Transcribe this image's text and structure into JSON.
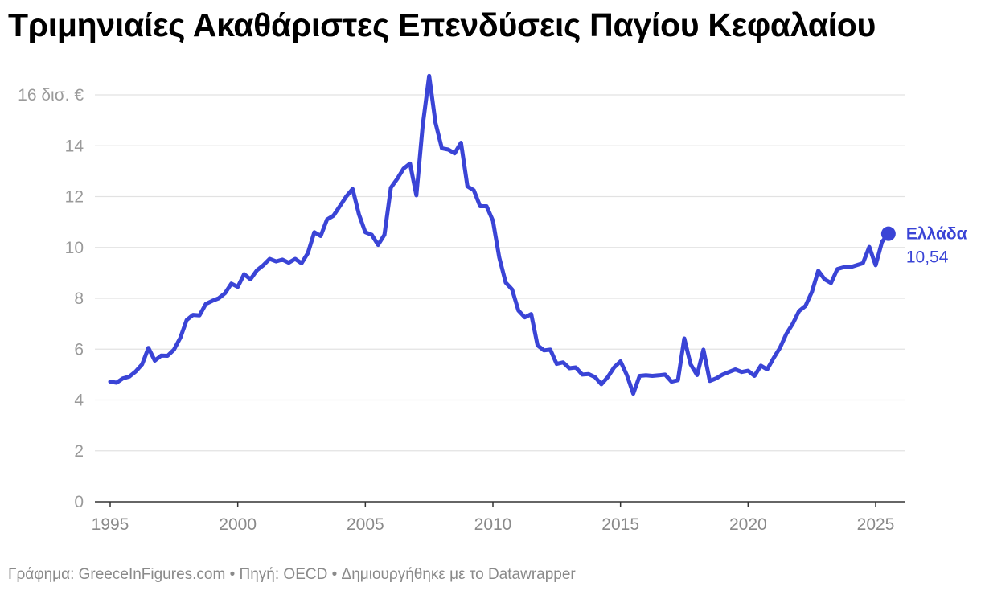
{
  "title": "Τριμηνιαίες Ακαθάριστες Επενδύσεις Παγίου Κεφαλαίου",
  "footer": "Γράφημα: GreeceInFigures.com • Πηγή: OECD • Δημιουργήθηκε με το Datawrapper",
  "colors": {
    "line": "#3a44d6",
    "grid": "#e2e2e2",
    "axis": "#333333"
  },
  "chart_data": {
    "type": "line",
    "title": "Τριμηνιαίες Ακαθάριστες Επενδύσεις Παγίου Κεφαλαίου",
    "xlabel": "",
    "ylabel": "",
    "ylim": [
      0,
      16
    ],
    "xlim": [
      1995,
      2026
    ],
    "y_ticks": [
      {
        "value": 0,
        "label": "0"
      },
      {
        "value": 2,
        "label": "2"
      },
      {
        "value": 4,
        "label": "4"
      },
      {
        "value": 6,
        "label": "6"
      },
      {
        "value": 8,
        "label": "8"
      },
      {
        "value": 10,
        "label": "10"
      },
      {
        "value": 12,
        "label": "12"
      },
      {
        "value": 14,
        "label": "14"
      },
      {
        "value": 16,
        "label": "16 δισ. €"
      }
    ],
    "x_ticks": [
      {
        "value": 1995,
        "label": "1995"
      },
      {
        "value": 2000,
        "label": "2000"
      },
      {
        "value": 2005,
        "label": "2005"
      },
      {
        "value": 2010,
        "label": "2010"
      },
      {
        "value": 2015,
        "label": "2015"
      },
      {
        "value": 2020,
        "label": "2020"
      },
      {
        "value": 2025,
        "label": "2025"
      }
    ],
    "grid": true,
    "series": [
      {
        "name": "Ελλάδα",
        "end_label": "10,54",
        "color": "#3a44d6",
        "points": [
          [
            1995.0,
            4.72
          ],
          [
            1995.25,
            4.68
          ],
          [
            1995.5,
            4.85
          ],
          [
            1995.75,
            4.92
          ],
          [
            1996.0,
            5.12
          ],
          [
            1996.25,
            5.4
          ],
          [
            1996.5,
            6.05
          ],
          [
            1996.75,
            5.55
          ],
          [
            1997.0,
            5.75
          ],
          [
            1997.25,
            5.74
          ],
          [
            1997.5,
            5.98
          ],
          [
            1997.75,
            6.45
          ],
          [
            1998.0,
            7.15
          ],
          [
            1998.25,
            7.35
          ],
          [
            1998.5,
            7.33
          ],
          [
            1998.75,
            7.78
          ],
          [
            1999.0,
            7.9
          ],
          [
            1999.25,
            8.0
          ],
          [
            1999.5,
            8.2
          ],
          [
            1999.75,
            8.58
          ],
          [
            2000.0,
            8.45
          ],
          [
            2000.25,
            8.95
          ],
          [
            2000.5,
            8.75
          ],
          [
            2000.75,
            9.1
          ],
          [
            2001.0,
            9.3
          ],
          [
            2001.25,
            9.55
          ],
          [
            2001.5,
            9.45
          ],
          [
            2001.75,
            9.52
          ],
          [
            2002.0,
            9.4
          ],
          [
            2002.25,
            9.55
          ],
          [
            2002.5,
            9.38
          ],
          [
            2002.75,
            9.78
          ],
          [
            2003.0,
            10.6
          ],
          [
            2003.25,
            10.45
          ],
          [
            2003.5,
            11.1
          ],
          [
            2003.75,
            11.25
          ],
          [
            2004.0,
            11.62
          ],
          [
            2004.25,
            12.0
          ],
          [
            2004.5,
            12.3
          ],
          [
            2004.75,
            11.3
          ],
          [
            2005.0,
            10.6
          ],
          [
            2005.25,
            10.5
          ],
          [
            2005.5,
            10.1
          ],
          [
            2005.75,
            10.5
          ],
          [
            2006.0,
            12.35
          ],
          [
            2006.25,
            12.7
          ],
          [
            2006.5,
            13.1
          ],
          [
            2006.75,
            13.3
          ],
          [
            2007.0,
            12.05
          ],
          [
            2007.25,
            14.8
          ],
          [
            2007.5,
            16.75
          ],
          [
            2007.75,
            14.9
          ],
          [
            2008.0,
            13.9
          ],
          [
            2008.25,
            13.85
          ],
          [
            2008.5,
            13.7
          ],
          [
            2008.75,
            14.12
          ],
          [
            2009.0,
            12.4
          ],
          [
            2009.25,
            12.25
          ],
          [
            2009.5,
            11.62
          ],
          [
            2009.75,
            11.62
          ],
          [
            2010.0,
            11.05
          ],
          [
            2010.25,
            9.6
          ],
          [
            2010.5,
            8.62
          ],
          [
            2010.75,
            8.35
          ],
          [
            2011.0,
            7.52
          ],
          [
            2011.25,
            7.25
          ],
          [
            2011.5,
            7.38
          ],
          [
            2011.75,
            6.15
          ],
          [
            2012.0,
            5.95
          ],
          [
            2012.25,
            5.98
          ],
          [
            2012.5,
            5.42
          ],
          [
            2012.75,
            5.48
          ],
          [
            2013.0,
            5.25
          ],
          [
            2013.25,
            5.28
          ],
          [
            2013.5,
            5.0
          ],
          [
            2013.75,
            5.02
          ],
          [
            2014.0,
            4.9
          ],
          [
            2014.25,
            4.62
          ],
          [
            2014.5,
            4.9
          ],
          [
            2014.75,
            5.28
          ],
          [
            2015.0,
            5.52
          ],
          [
            2015.25,
            4.98
          ],
          [
            2015.5,
            4.25
          ],
          [
            2015.75,
            4.95
          ],
          [
            2016.0,
            4.97
          ],
          [
            2016.25,
            4.95
          ],
          [
            2016.5,
            4.97
          ],
          [
            2016.75,
            5.0
          ],
          [
            2017.0,
            4.72
          ],
          [
            2017.25,
            4.78
          ],
          [
            2017.5,
            6.42
          ],
          [
            2017.75,
            5.4
          ],
          [
            2018.0,
            4.98
          ],
          [
            2018.25,
            5.98
          ],
          [
            2018.5,
            4.75
          ],
          [
            2018.75,
            4.85
          ],
          [
            2019.0,
            5.0
          ],
          [
            2019.25,
            5.1
          ],
          [
            2019.5,
            5.2
          ],
          [
            2019.75,
            5.1
          ],
          [
            2020.0,
            5.15
          ],
          [
            2020.25,
            4.95
          ],
          [
            2020.5,
            5.35
          ],
          [
            2020.75,
            5.2
          ],
          [
            2021.0,
            5.65
          ],
          [
            2021.25,
            6.05
          ],
          [
            2021.5,
            6.6
          ],
          [
            2021.75,
            7.0
          ],
          [
            2022.0,
            7.5
          ],
          [
            2022.25,
            7.7
          ],
          [
            2022.5,
            8.25
          ],
          [
            2022.75,
            9.08
          ],
          [
            2023.0,
            8.75
          ],
          [
            2023.25,
            8.6
          ],
          [
            2023.5,
            9.15
          ],
          [
            2023.75,
            9.22
          ],
          [
            2024.0,
            9.22
          ],
          [
            2024.25,
            9.3
          ],
          [
            2024.5,
            9.38
          ],
          [
            2024.75,
            10.02
          ],
          [
            2025.0,
            9.3
          ],
          [
            2025.25,
            10.22
          ],
          [
            2025.5,
            10.54
          ]
        ]
      }
    ]
  }
}
